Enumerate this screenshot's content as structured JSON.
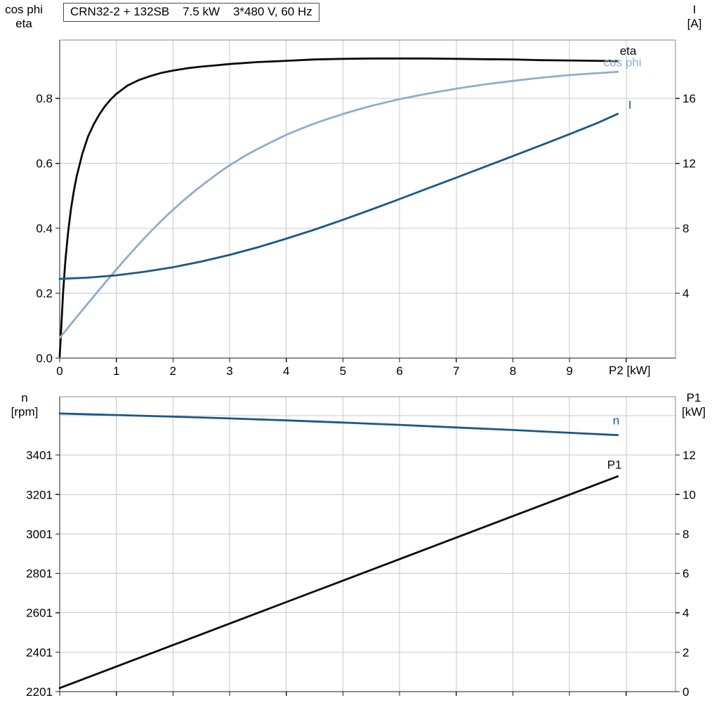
{
  "header": {
    "title": "CRN32-2 + 132SB    7.5 kW    3*480 V, 60 Hz"
  },
  "axis_titles": {
    "top_left": [
      "cos phi",
      "eta"
    ],
    "top_right": [
      "I",
      "[A]"
    ],
    "bottom_left": [
      "n",
      "[rpm]"
    ],
    "bottom_right": [
      "P1",
      "[kW]"
    ]
  },
  "colors": {
    "black": "#0a0a0a",
    "light_blue": "#8fadce",
    "dark_blue": "#1a5886",
    "grid": "#c9c9c9",
    "axis": "#1c1c1c",
    "frame": "#8a8a8a"
  },
  "chart_data": [
    {
      "type": "line",
      "title": "CRN32-2 + 132SB  7.5 kW  3*480 V, 60 Hz",
      "xlabel": "P2 [kW]",
      "ylabel_left": "cos phi / eta",
      "ylabel_right": "I [A]",
      "xlim": [
        0,
        10.87
      ],
      "x_gridlines": [
        0,
        1,
        2,
        3,
        4,
        5,
        6,
        7,
        8,
        9,
        10
      ],
      "x_tick_labels": [
        {
          "v": 0,
          "label": "0"
        },
        {
          "v": 1,
          "label": "1"
        },
        {
          "v": 2,
          "label": "2"
        },
        {
          "v": 3,
          "label": "3"
        },
        {
          "v": 4,
          "label": "4"
        },
        {
          "v": 5,
          "label": "5"
        },
        {
          "v": 6,
          "label": "6"
        },
        {
          "v": 7,
          "label": "7"
        },
        {
          "v": 8,
          "label": "8"
        },
        {
          "v": 9,
          "label": "9"
        }
      ],
      "left_axis": {
        "lim": [
          0,
          0.98
        ],
        "gridlines": [
          0.2,
          0.4,
          0.6,
          0.8
        ],
        "ticks": [
          {
            "v": 0,
            "label": "0.0"
          },
          {
            "v": 0.2,
            "label": "0.2"
          },
          {
            "v": 0.4,
            "label": "0.4"
          },
          {
            "v": 0.6,
            "label": "0.6"
          },
          {
            "v": 0.8,
            "label": "0.8"
          }
        ]
      },
      "right_axis": {
        "lim": [
          0,
          19.6
        ],
        "ticks": [
          {
            "v": 4,
            "label": "4"
          },
          {
            "v": 8,
            "label": "8"
          },
          {
            "v": 12,
            "label": "12"
          },
          {
            "v": 16,
            "label": "16"
          }
        ]
      },
      "series": [
        {
          "key": "eta",
          "name": "eta",
          "axis": "left",
          "color": "black",
          "label_offset": [
            3,
            -9
          ],
          "points": [
            [
              0,
              0.005
            ],
            [
              0.03,
              0.1
            ],
            [
              0.06,
              0.2
            ],
            [
              0.1,
              0.3
            ],
            [
              0.15,
              0.39
            ],
            [
              0.2,
              0.46
            ],
            [
              0.25,
              0.515
            ],
            [
              0.3,
              0.56
            ],
            [
              0.4,
              0.63
            ],
            [
              0.5,
              0.682
            ],
            [
              0.6,
              0.72
            ],
            [
              0.7,
              0.751
            ],
            [
              0.8,
              0.776
            ],
            [
              0.9,
              0.797
            ],
            [
              1,
              0.814
            ],
            [
              1.2,
              0.84
            ],
            [
              1.4,
              0.857
            ],
            [
              1.6,
              0.869
            ],
            [
              1.8,
              0.879
            ],
            [
              2,
              0.886
            ],
            [
              2.25,
              0.893
            ],
            [
              2.5,
              0.898
            ],
            [
              2.75,
              0.902
            ],
            [
              3,
              0.906
            ],
            [
              3.5,
              0.912
            ],
            [
              4,
              0.916
            ],
            [
              4.5,
              0.92
            ],
            [
              5,
              0.922
            ],
            [
              5.5,
              0.923
            ],
            [
              6,
              0.923
            ],
            [
              6.5,
              0.923
            ],
            [
              7,
              0.922
            ],
            [
              7.5,
              0.921
            ],
            [
              8,
              0.92
            ],
            [
              8.5,
              0.918
            ],
            [
              9,
              0.917
            ],
            [
              9.5,
              0.916
            ],
            [
              9.85,
              0.915
            ]
          ]
        },
        {
          "key": "cos-phi",
          "name": "cos phi",
          "axis": "left",
          "color": "light_blue",
          "label_offset": [
            -20,
            -8
          ],
          "points": [
            [
              0,
              0.062
            ],
            [
              0.2,
              0.105
            ],
            [
              0.4,
              0.148
            ],
            [
              0.6,
              0.19
            ],
            [
              0.8,
              0.232
            ],
            [
              1,
              0.273
            ],
            [
              1.2,
              0.313
            ],
            [
              1.4,
              0.352
            ],
            [
              1.6,
              0.389
            ],
            [
              1.8,
              0.424
            ],
            [
              2,
              0.457
            ],
            [
              2.2,
              0.488
            ],
            [
              2.4,
              0.517
            ],
            [
              2.6,
              0.544
            ],
            [
              2.8,
              0.57
            ],
            [
              3,
              0.594
            ],
            [
              3.25,
              0.621
            ],
            [
              3.5,
              0.645
            ],
            [
              3.75,
              0.667
            ],
            [
              4,
              0.688
            ],
            [
              4.25,
              0.706
            ],
            [
              4.5,
              0.723
            ],
            [
              4.75,
              0.738
            ],
            [
              5,
              0.752
            ],
            [
              5.25,
              0.765
            ],
            [
              5.5,
              0.777
            ],
            [
              6,
              0.798
            ],
            [
              6.5,
              0.815
            ],
            [
              7,
              0.83
            ],
            [
              7.5,
              0.843
            ],
            [
              8,
              0.854
            ],
            [
              8.5,
              0.864
            ],
            [
              9,
              0.872
            ],
            [
              9.5,
              0.878
            ],
            [
              9.85,
              0.882
            ]
          ]
        },
        {
          "key": "current",
          "name": "I",
          "axis": "right",
          "color": "dark_blue",
          "label_offset": [
            15,
            -7
          ],
          "points": [
            [
              0,
              4.88
            ],
            [
              0.5,
              4.96
            ],
            [
              1,
              5.1
            ],
            [
              1.5,
              5.32
            ],
            [
              2,
              5.6
            ],
            [
              2.5,
              5.95
            ],
            [
              3,
              6.36
            ],
            [
              3.5,
              6.83
            ],
            [
              4,
              7.36
            ],
            [
              4.5,
              7.92
            ],
            [
              5,
              8.52
            ],
            [
              5.5,
              9.15
            ],
            [
              6,
              9.8
            ],
            [
              6.5,
              10.46
            ],
            [
              7,
              11.12
            ],
            [
              7.5,
              11.78
            ],
            [
              8,
              12.45
            ],
            [
              8.5,
              13.12
            ],
            [
              9,
              13.8
            ],
            [
              9.5,
              14.5
            ],
            [
              9.85,
              15.05
            ]
          ]
        }
      ]
    },
    {
      "type": "line",
      "title": "",
      "xlabel": "",
      "ylabel_left": "n [rpm]",
      "ylabel_right": "P1 [kW]",
      "xlim": [
        0,
        10.87
      ],
      "x_gridlines": [
        0,
        1,
        2,
        3,
        4,
        5,
        6,
        7,
        8,
        9,
        10
      ],
      "x_tick_labels": [],
      "left_axis": {
        "lim": [
          2201,
          3697
        ],
        "gridlines": [
          2401,
          2601,
          2801,
          3001,
          3201,
          3401,
          3601
        ],
        "ticks": [
          {
            "v": 2201,
            "label": "2201"
          },
          {
            "v": 2401,
            "label": "2401"
          },
          {
            "v": 2601,
            "label": "2601"
          },
          {
            "v": 2801,
            "label": "2801"
          },
          {
            "v": 3001,
            "label": "3001"
          },
          {
            "v": 3201,
            "label": "3201"
          },
          {
            "v": 3401,
            "label": "3401"
          }
        ]
      },
      "right_axis": {
        "lim": [
          0,
          14.96
        ],
        "ticks": [
          {
            "v": 0,
            "label": "0"
          },
          {
            "v": 2,
            "label": "2"
          },
          {
            "v": 4,
            "label": "4"
          },
          {
            "v": 6,
            "label": "6"
          },
          {
            "v": 8,
            "label": "8"
          },
          {
            "v": 10,
            "label": "10"
          },
          {
            "v": 12,
            "label": "12"
          }
        ]
      },
      "series": [
        {
          "key": "speed",
          "name": "n",
          "axis": "left",
          "color": "dark_blue",
          "label_offset": [
            -7,
            -15
          ],
          "points": [
            [
              0,
              3612
            ],
            [
              1,
              3604
            ],
            [
              2,
              3596
            ],
            [
              3,
              3587
            ],
            [
              4,
              3577
            ],
            [
              5,
              3566
            ],
            [
              6,
              3554
            ],
            [
              7,
              3541
            ],
            [
              8,
              3528
            ],
            [
              9,
              3514
            ],
            [
              9.85,
              3502
            ]
          ]
        },
        {
          "key": "p1",
          "name": "P1",
          "axis": "right",
          "color": "black",
          "label_offset": [
            -15,
            -11
          ],
          "points": [
            [
              0,
              0.18
            ],
            [
              2,
              2.36
            ],
            [
              4,
              4.54
            ],
            [
              6,
              6.72
            ],
            [
              8,
              8.9
            ],
            [
              9.85,
              10.92
            ]
          ]
        }
      ]
    }
  ]
}
